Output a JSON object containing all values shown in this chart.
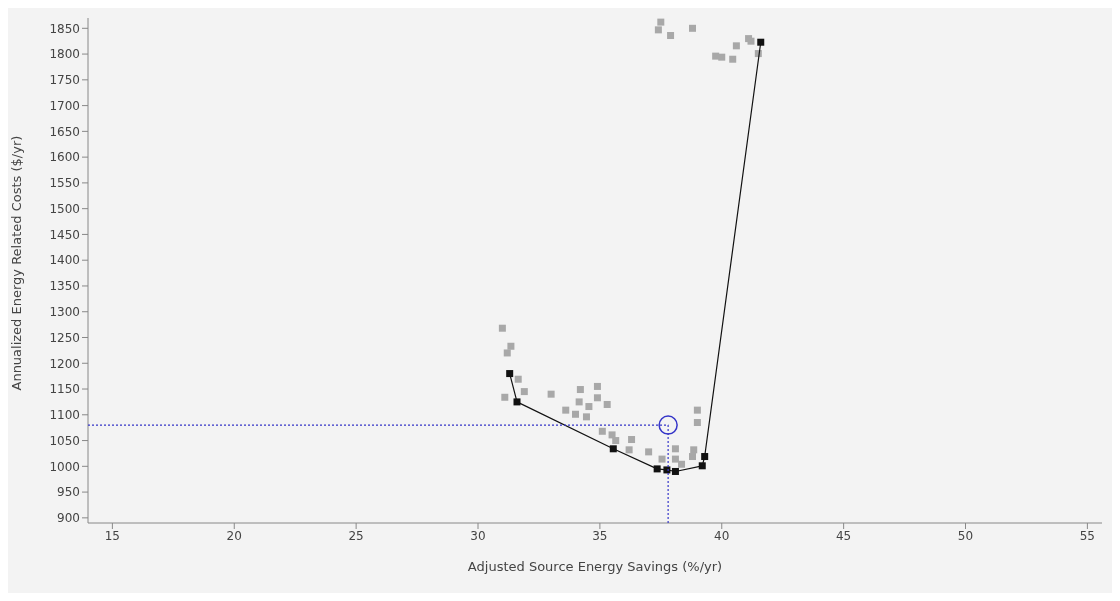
{
  "chart_data": {
    "type": "scatter",
    "xlabel": "Adjusted Source Energy Savings (%/yr)",
    "ylabel": "Annualized Energy Related Costs ($/yr)",
    "xlim": [
      14,
      55.6
    ],
    "ylim": [
      890,
      1870
    ],
    "xticks": [
      15,
      20,
      25,
      30,
      35,
      40,
      45,
      50,
      55
    ],
    "yticks": [
      900,
      950,
      1000,
      1050,
      1100,
      1150,
      1200,
      1250,
      1300,
      1350,
      1400,
      1450,
      1500,
      1550,
      1600,
      1650,
      1700,
      1750,
      1800,
      1850
    ],
    "grid": false,
    "legend": false,
    "series": [
      {
        "type": "scatter",
        "marker": "square",
        "color": "#a8a8a8",
        "x": [
          37.5,
          37.4,
          37.9,
          38.8,
          39.75,
          40.0,
          40.45,
          40.6,
          41.1,
          41.2,
          41.5,
          31.0,
          31.35,
          31.2,
          31.65,
          31.9,
          31.1,
          33.0,
          34.2,
          34.9,
          34.9,
          35.3,
          34.15,
          34.55,
          33.6,
          34.0,
          34.45,
          35.1,
          35.5,
          36.3,
          35.65,
          36.2,
          37.0,
          37.55,
          38.1,
          38.1,
          38.85,
          39.0,
          39.0,
          38.8,
          38.35
        ],
        "values": [
          1862,
          1847,
          1836,
          1850,
          1796,
          1794,
          1790,
          1816,
          1830,
          1825,
          1801,
          1268,
          1233,
          1220,
          1169,
          1145,
          1134,
          1140,
          1149,
          1155,
          1133,
          1120,
          1125,
          1116,
          1109,
          1101,
          1096,
          1068,
          1061,
          1052,
          1050,
          1032,
          1028,
          1014,
          1014,
          1034,
          1032,
          1109,
          1085,
          1019,
          1004
        ]
      },
      {
        "type": "line",
        "marker": "square",
        "line_style": "solid",
        "color": "#111111",
        "x": [
          31.3,
          31.6,
          35.55,
          37.35,
          37.75,
          38.1,
          39.2,
          39.3,
          41.6
        ],
        "values": [
          1180,
          1125,
          1034,
          995,
          993,
          990,
          1001,
          1019,
          1823
        ]
      },
      {
        "type": "line",
        "marker": "none",
        "line_style": "dotted",
        "color": "#3535c8",
        "x": [
          14,
          37.8,
          37.8
        ],
        "values": [
          1080,
          1080,
          890
        ]
      },
      {
        "type": "scatter",
        "marker": "circle",
        "color": "#3535c8",
        "x": [
          37.8
        ],
        "values": [
          1080
        ]
      }
    ]
  }
}
